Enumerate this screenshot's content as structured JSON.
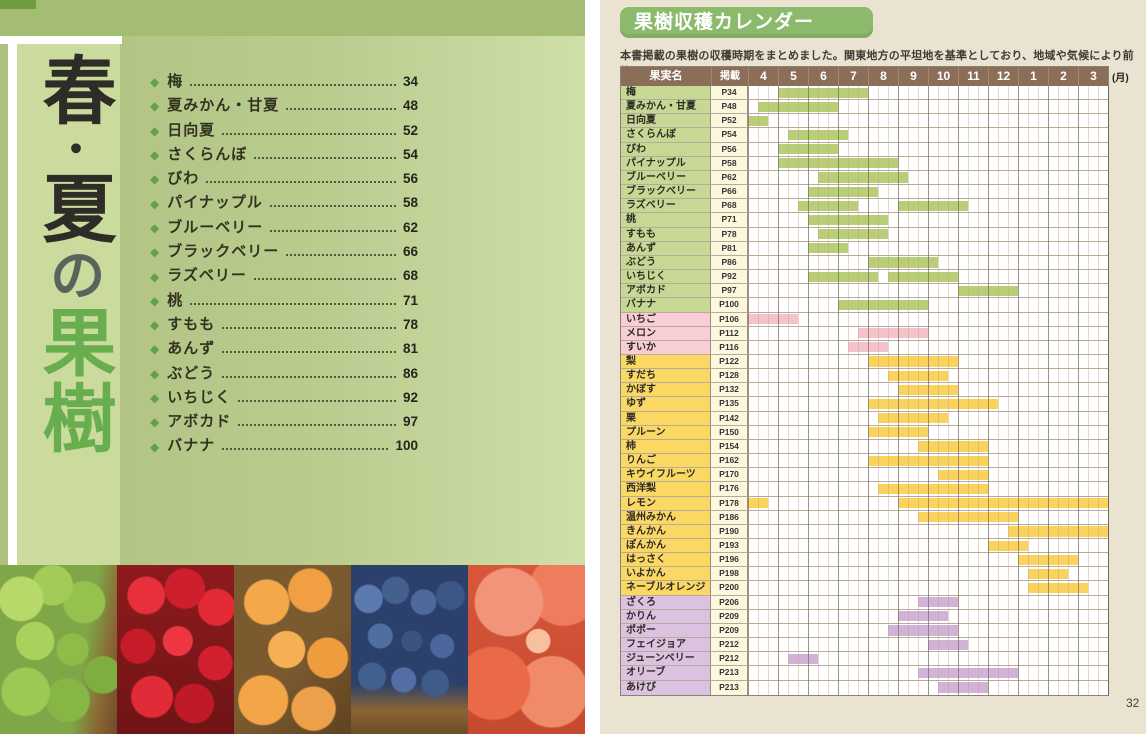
{
  "left_page": {
    "title": {
      "part1": "春",
      "dot": "・",
      "part2": "夏",
      "particle": "の",
      "accent": "果樹"
    },
    "toc": [
      {
        "label": "梅",
        "page": "34"
      },
      {
        "label": "夏みかん・甘夏",
        "page": "48"
      },
      {
        "label": "日向夏",
        "page": "52"
      },
      {
        "label": "さくらんぼ",
        "page": "54"
      },
      {
        "label": "びわ",
        "page": "56"
      },
      {
        "label": "パイナップル",
        "page": "58"
      },
      {
        "label": "ブルーベリー",
        "page": "62"
      },
      {
        "label": "ブラックベリー",
        "page": "66"
      },
      {
        "label": "ラズベリー",
        "page": "68"
      },
      {
        "label": "桃",
        "page": "71"
      },
      {
        "label": "すもも",
        "page": "78"
      },
      {
        "label": "あんず",
        "page": "81"
      },
      {
        "label": "ぶどう",
        "page": "86"
      },
      {
        "label": "いちじく",
        "page": "92"
      },
      {
        "label": "アボカド",
        "page": "97"
      },
      {
        "label": "バナナ",
        "page": "100"
      }
    ],
    "photo_names": [
      "ume-plums",
      "cherries",
      "loquats",
      "blueberries",
      "peaches"
    ],
    "bullet_glyph": "◆"
  },
  "right_page": {
    "badge": "果樹収穫カレンダー",
    "description": "本書掲載の果樹の収穫時期をまとめました。関東地方の平坦地を基準としており、地域や気候により前後します。",
    "unit_label": "(月)",
    "page_number": "32",
    "table": {
      "headers": {
        "fruit": "果実名",
        "page": "掲載"
      },
      "months": [
        "4",
        "5",
        "6",
        "7",
        "8",
        "9",
        "10",
        "11",
        "12",
        "1",
        "2",
        "3"
      ],
      "bars_unit": "month-thirds from April: 0 = early April, 36 = end of March",
      "group_colors": {
        "green": {
          "label": "#c6d893",
          "bar": "#b8ce77"
        },
        "pink": {
          "label": "#f8cdd5",
          "bar": "#f3c2cb"
        },
        "yellow": {
          "label": "#fbd763",
          "bar": "#f9d35c"
        },
        "purple": {
          "label": "#dbc2e0",
          "bar": "#d2b3d8"
        }
      },
      "rows": [
        {
          "name": "梅",
          "page": "P34",
          "group": "green",
          "bars": [
            [
              3,
              12
            ]
          ]
        },
        {
          "name": "夏みかん・甘夏",
          "page": "P48",
          "group": "green",
          "bars": [
            [
              1,
              9
            ]
          ]
        },
        {
          "name": "日向夏",
          "page": "P52",
          "group": "green",
          "bars": [
            [
              0,
              2
            ]
          ]
        },
        {
          "name": "さくらんぼ",
          "page": "P54",
          "group": "green",
          "bars": [
            [
              4,
              10
            ]
          ]
        },
        {
          "name": "びわ",
          "page": "P56",
          "group": "green",
          "bars": [
            [
              3,
              9
            ]
          ]
        },
        {
          "name": "パイナップル",
          "page": "P58",
          "group": "green",
          "bars": [
            [
              3,
              15
            ]
          ]
        },
        {
          "name": "ブルーベリー",
          "page": "P62",
          "group": "green",
          "bars": [
            [
              7,
              16
            ]
          ]
        },
        {
          "name": "ブラックベリー",
          "page": "P66",
          "group": "green",
          "bars": [
            [
              6,
              13
            ]
          ]
        },
        {
          "name": "ラズベリー",
          "page": "P68",
          "group": "green",
          "bars": [
            [
              5,
              11
            ],
            [
              15,
              22
            ]
          ]
        },
        {
          "name": "桃",
          "page": "P71",
          "group": "green",
          "bars": [
            [
              6,
              14
            ]
          ]
        },
        {
          "name": "すもも",
          "page": "P78",
          "group": "green",
          "bars": [
            [
              7,
              14
            ]
          ]
        },
        {
          "name": "あんず",
          "page": "P81",
          "group": "green",
          "bars": [
            [
              6,
              10
            ]
          ]
        },
        {
          "name": "ぶどう",
          "page": "P86",
          "group": "green",
          "bars": [
            [
              12,
              19
            ]
          ]
        },
        {
          "name": "いちじく",
          "page": "P92",
          "group": "green",
          "bars": [
            [
              6,
              13
            ],
            [
              14,
              21
            ]
          ]
        },
        {
          "name": "アボカド",
          "page": "P97",
          "group": "green",
          "bars": [
            [
              21,
              27
            ]
          ]
        },
        {
          "name": "バナナ",
          "page": "P100",
          "group": "green",
          "bars": [
            [
              9,
              18
            ]
          ]
        },
        {
          "name": "いちご",
          "page": "P106",
          "group": "pink",
          "bars": [
            [
              0,
              5
            ]
          ]
        },
        {
          "name": "メロン",
          "page": "P112",
          "group": "pink",
          "bars": [
            [
              11,
              18
            ]
          ]
        },
        {
          "name": "すいか",
          "page": "P116",
          "group": "pink",
          "bars": [
            [
              10,
              14
            ]
          ]
        },
        {
          "name": "梨",
          "page": "P122",
          "group": "yellow",
          "bars": [
            [
              12,
              21
            ]
          ]
        },
        {
          "name": "すだち",
          "page": "P128",
          "group": "yellow",
          "bars": [
            [
              14,
              20
            ]
          ]
        },
        {
          "name": "かぼす",
          "page": "P132",
          "group": "yellow",
          "bars": [
            [
              15,
              21
            ]
          ]
        },
        {
          "name": "ゆず",
          "page": "P135",
          "group": "yellow",
          "bars": [
            [
              12,
              25
            ]
          ]
        },
        {
          "name": "栗",
          "page": "P142",
          "group": "yellow",
          "bars": [
            [
              13,
              20
            ]
          ]
        },
        {
          "name": "プルーン",
          "page": "P150",
          "group": "yellow",
          "bars": [
            [
              12,
              18
            ]
          ]
        },
        {
          "name": "柿",
          "page": "P154",
          "group": "yellow",
          "bars": [
            [
              17,
              24
            ]
          ]
        },
        {
          "name": "りんご",
          "page": "P162",
          "group": "yellow",
          "bars": [
            [
              12,
              24
            ]
          ]
        },
        {
          "name": "キウイフルーツ",
          "page": "P170",
          "group": "yellow",
          "bars": [
            [
              19,
              24
            ]
          ]
        },
        {
          "name": "西洋梨",
          "page": "P176",
          "group": "yellow",
          "bars": [
            [
              13,
              24
            ]
          ]
        },
        {
          "name": "レモン",
          "page": "P178",
          "group": "yellow",
          "bars": [
            [
              0,
              2
            ],
            [
              15,
              36
            ]
          ]
        },
        {
          "name": "温州みかん",
          "page": "P186",
          "group": "yellow",
          "bars": [
            [
              17,
              27
            ]
          ]
        },
        {
          "name": "きんかん",
          "page": "P190",
          "group": "yellow",
          "bars": [
            [
              26,
              36
            ]
          ]
        },
        {
          "name": "ぽんかん",
          "page": "P193",
          "group": "yellow",
          "bars": [
            [
              24,
              28
            ]
          ]
        },
        {
          "name": "はっさく",
          "page": "P196",
          "group": "yellow",
          "bars": [
            [
              27,
              33
            ]
          ]
        },
        {
          "name": "いよかん",
          "page": "P198",
          "group": "yellow",
          "bars": [
            [
              28,
              32
            ]
          ]
        },
        {
          "name": "ネーブルオレンジ",
          "page": "P200",
          "group": "yellow",
          "bars": [
            [
              28,
              34
            ]
          ]
        },
        {
          "name": "ざくろ",
          "page": "P206",
          "group": "purple",
          "bars": [
            [
              17,
              21
            ]
          ]
        },
        {
          "name": "かりん",
          "page": "P209",
          "group": "purple",
          "bars": [
            [
              15,
              20
            ]
          ]
        },
        {
          "name": "ポポー",
          "page": "P209",
          "group": "purple",
          "bars": [
            [
              14,
              21
            ]
          ]
        },
        {
          "name": "フェイジョア",
          "page": "P212",
          "group": "purple",
          "bars": [
            [
              18,
              22
            ]
          ]
        },
        {
          "name": "ジューンベリー",
          "page": "P212",
          "group": "purple",
          "bars": [
            [
              4,
              7
            ]
          ]
        },
        {
          "name": "オリーブ",
          "page": "P213",
          "group": "purple",
          "bars": [
            [
              17,
              27
            ]
          ]
        },
        {
          "name": "あけび",
          "page": "P213",
          "group": "purple",
          "bars": [
            [
              19,
              24
            ]
          ]
        }
      ]
    }
  }
}
